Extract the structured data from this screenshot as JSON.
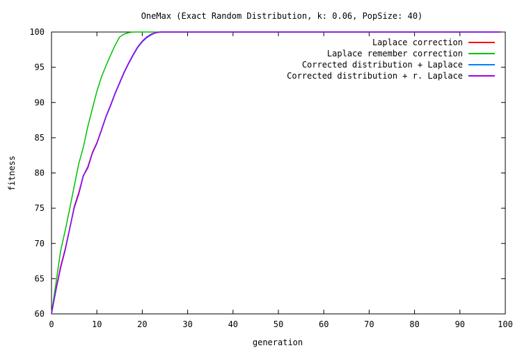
{
  "chart_data": {
    "type": "line",
    "title": "OneMax (Exact Random Distribution, k: 0.06, PopSize: 40)",
    "xlabel": "generation",
    "ylabel": "fitness",
    "xlim": [
      0,
      100
    ],
    "ylim": [
      60,
      100
    ],
    "x_ticks": [
      0,
      10,
      20,
      30,
      40,
      50,
      60,
      70,
      80,
      90,
      100
    ],
    "y_ticks": [
      60,
      65,
      70,
      75,
      80,
      85,
      90,
      95,
      100
    ],
    "grid": false,
    "legend_position": "top-right",
    "series": [
      {
        "name": "Laplace correction",
        "color": "#ff0000",
        "x": [
          0,
          1,
          2,
          3,
          4,
          5,
          6,
          7,
          8,
          9,
          10,
          11,
          12,
          13,
          14,
          15,
          16,
          17,
          18,
          19,
          20,
          21,
          22,
          23,
          24,
          25,
          30,
          40,
          50,
          60,
          70,
          80,
          90,
          99
        ],
        "y": [
          60.1,
          63.6,
          66.7,
          69.2,
          72.1,
          75.2,
          77.2,
          79.6,
          80.9,
          82.9,
          84.3,
          86.1,
          88.0,
          89.6,
          91.3,
          92.8,
          94.3,
          95.6,
          96.8,
          97.9,
          98.7,
          99.3,
          99.7,
          99.9,
          100,
          100,
          100,
          100,
          100,
          100,
          100,
          100,
          100,
          100
        ]
      },
      {
        "name": "Laplace remember correction",
        "color": "#00c000",
        "x": [
          0,
          1,
          2,
          3,
          4,
          5,
          6,
          7,
          8,
          9,
          10,
          11,
          12,
          13,
          14,
          15,
          16,
          17,
          18,
          19,
          20,
          25,
          30,
          40,
          50,
          60,
          70,
          80,
          90,
          99
        ],
        "y": [
          60.1,
          64.4,
          68.9,
          71.8,
          74.9,
          78.1,
          81.3,
          83.6,
          86.6,
          89.1,
          91.6,
          93.6,
          95.2,
          96.7,
          98.1,
          99.3,
          99.7,
          99.9,
          100,
          100,
          100,
          100,
          100,
          100,
          100,
          100,
          100,
          100,
          100,
          100
        ]
      },
      {
        "name": "Corrected distribution + Laplace",
        "color": "#0080ff",
        "x": [
          0,
          1,
          2,
          3,
          4,
          5,
          6,
          7,
          8,
          9,
          10,
          11,
          12,
          13,
          14,
          15,
          16,
          17,
          18,
          19,
          20,
          21,
          22,
          23,
          24,
          25,
          30,
          40,
          50,
          60,
          70,
          80,
          90,
          99
        ],
        "y": [
          60.0,
          63.5,
          66.5,
          69.0,
          72.0,
          75.0,
          77.0,
          79.5,
          80.8,
          82.8,
          84.2,
          86.0,
          87.9,
          89.5,
          91.2,
          92.7,
          94.2,
          95.5,
          96.7,
          97.8,
          98.6,
          99.2,
          99.6,
          99.9,
          100,
          100,
          100,
          100,
          100,
          100,
          100,
          100,
          100,
          100
        ]
      },
      {
        "name": "Corrected distribution + r. Laplace",
        "color": "#a000f0",
        "x": [
          0,
          1,
          2,
          3,
          4,
          5,
          6,
          7,
          8,
          9,
          10,
          11,
          12,
          13,
          14,
          15,
          16,
          17,
          18,
          19,
          20,
          21,
          22,
          23,
          24,
          25,
          30,
          40,
          50,
          60,
          70,
          80,
          90,
          99
        ],
        "y": [
          60.0,
          63.4,
          66.5,
          69.1,
          72.1,
          75.1,
          77.0,
          79.6,
          80.7,
          82.8,
          84.2,
          86.1,
          88.0,
          89.6,
          91.3,
          92.8,
          94.3,
          95.6,
          96.8,
          97.9,
          98.7,
          99.3,
          99.7,
          99.9,
          100,
          100,
          100,
          100,
          100,
          100,
          100,
          100,
          100,
          100
        ]
      }
    ]
  }
}
